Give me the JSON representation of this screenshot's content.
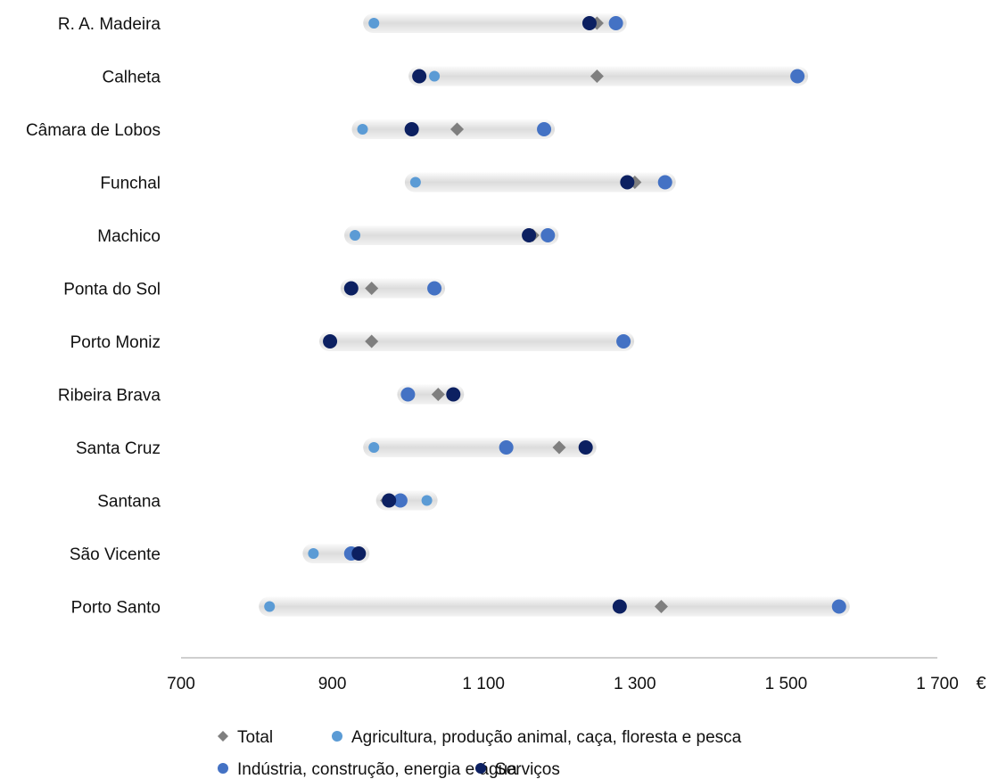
{
  "chart_data": {
    "type": "scatter",
    "title": "",
    "xlabel": "",
    "ylabel": "",
    "unit": "€",
    "xlim": [
      700,
      1700
    ],
    "xticks": [
      {
        "value": 700,
        "label": "700"
      },
      {
        "value": 900,
        "label": "900"
      },
      {
        "value": 1100,
        "label": "1 100"
      },
      {
        "value": 1300,
        "label": "1 300"
      },
      {
        "value": 1500,
        "label": "1 500"
      },
      {
        "value": 1700,
        "label": "1 700"
      }
    ],
    "grid": false,
    "legend_position": "bottom",
    "categories": [
      "R. A. Madeira",
      "Calheta",
      "Câmara de Lobos",
      "Funchal",
      "Machico",
      "Ponta do Sol",
      "Porto Moniz",
      "Ribeira Brava",
      "Santa Cruz",
      "Santana",
      "São Vicente",
      "Porto Santo"
    ],
    "series": [
      {
        "name": "Total",
        "marker": "diamond",
        "color": "#7f7f7f",
        "values": [
          1250,
          1250,
          1065,
          1300,
          1165,
          952,
          952,
          1040,
          1200,
          972,
          930,
          1335
        ]
      },
      {
        "name": "Agricultura, produção animal, caça, floresta e pesca",
        "marker": "circle-small",
        "color": "#5b9bd5",
        "values": [
          955,
          1035,
          940,
          1010,
          930,
          925,
          null,
          null,
          955,
          1025,
          875,
          817
        ]
      },
      {
        "name": "Indústria, construção, energia e água",
        "marker": "circle",
        "color": "#4472c4",
        "values": [
          1275,
          1515,
          1180,
          1340,
          1185,
          1035,
          1285,
          1000,
          1130,
          990,
          925,
          1570
        ]
      },
      {
        "name": "Serviços",
        "marker": "circle",
        "color": "#0c2061",
        "values": [
          1240,
          1015,
          1005,
          1290,
          1160,
          925,
          897,
          1060,
          1235,
          975,
          935,
          1280
        ]
      }
    ]
  }
}
